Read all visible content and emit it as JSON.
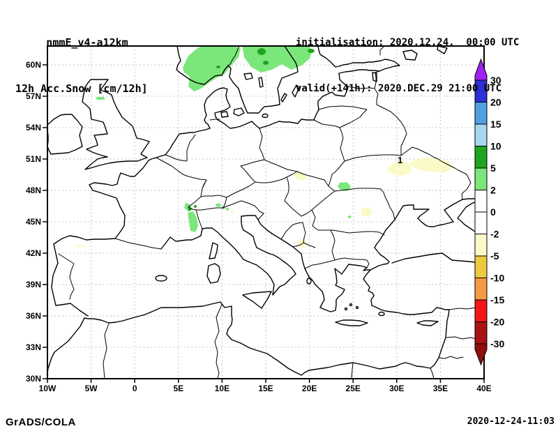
{
  "header": {
    "title_line1": "nmmE_v4-a12km",
    "title_line2": "12h Acc.Snow [cm/12h]",
    "init_line": "initialisation: 2020.12.24.  00:00 UTC",
    "valid_line": "valid(+141h): 2020.DEC.29 21:00 UTC"
  },
  "footer": {
    "left": "GrADS/COLA",
    "right": "2020-12-24-11:03"
  },
  "map": {
    "x_axis": {
      "labels": [
        "10W",
        "5W",
        "0",
        "5E",
        "10E",
        "15E",
        "20E",
        "25E",
        "30E",
        "35E",
        "40E"
      ],
      "degrees": [
        -10,
        -5,
        0,
        5,
        10,
        15,
        20,
        25,
        30,
        35,
        40
      ]
    },
    "y_axis": {
      "labels": [
        "30N",
        "33N",
        "36N",
        "39N",
        "42N",
        "45N",
        "48N",
        "51N",
        "54N",
        "57N",
        "60N"
      ],
      "degrees": [
        30,
        33,
        36,
        39,
        42,
        45,
        48,
        51,
        54,
        57,
        60
      ]
    },
    "contour_label": "1",
    "grid_color": "#b0b0b0",
    "outline_color": "#000000"
  },
  "colorbar": {
    "levels": [
      "30",
      "20",
      "15",
      "10",
      "5",
      "2",
      "0",
      "-2",
      "-5",
      "-10",
      "-15",
      "-20",
      "-30"
    ],
    "segment_colors": [
      "#2F2FD8",
      "#4FA0E0",
      "#A8D8F0",
      "#1FA41F",
      "#7BE77B",
      "#FFFFFF",
      "#FFFFFF",
      "#FAFAC8",
      "#EDC93F",
      "#F59B42",
      "#F51616",
      "#A81414"
    ],
    "top_arrow_color": "#A020F0",
    "bottom_arrow_color": "#8F0F0F",
    "patch_colors": {
      "light_green": "#7BE77B",
      "green": "#1FA41F",
      "pale_yellow": "#FAFAC8"
    }
  },
  "snow_patches": [
    {
      "region": "southern-norway-central-sweden",
      "shade": "2-5 cm",
      "spots": "5-10 cm"
    },
    {
      "region": "scotland",
      "shade": "2-5 cm"
    },
    {
      "region": "western-alps",
      "shade": "2-5 cm",
      "spots": "5-10 cm"
    },
    {
      "region": "northern-carpathians",
      "shade": "2-5 cm"
    },
    {
      "region": "sea-of-azov-lower-don",
      "shade": "-2 to -5"
    },
    {
      "region": "southeastern-romania",
      "shade": "-2 to -5"
    },
    {
      "region": "southern-poland-slovakia",
      "shade": "-2 to -5"
    },
    {
      "region": "serbia",
      "shade": "-2 to -5"
    }
  ]
}
